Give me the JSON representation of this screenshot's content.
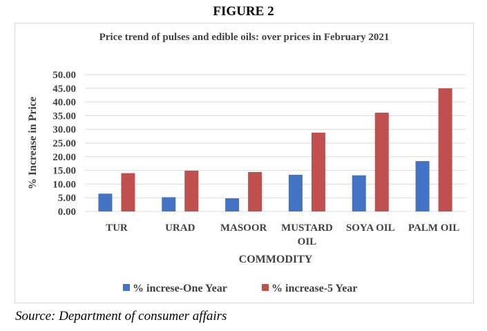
{
  "figure_label": "FIGURE 2",
  "source": "Source: Department of consumer affairs",
  "colors": {
    "series1": "#4472c4",
    "series2": "#c0504d",
    "grid": "#d9d9d9",
    "text": "#404040"
  },
  "chart_data": {
    "type": "bar",
    "title": "Price trend of pulses and edible oils: over prices in February 2021",
    "xlabel": "COMMODITY",
    "ylabel": "% Increase in Price",
    "ylim": [
      0,
      50
    ],
    "yticks": [
      "0.00",
      "5.00",
      "10.00",
      "15.00",
      "20.00",
      "25.00",
      "30.00",
      "35.00",
      "40.00",
      "45.00",
      "50.00"
    ],
    "categories": [
      [
        "TUR"
      ],
      [
        "URAD"
      ],
      [
        "MASOOR"
      ],
      [
        "MUSTARD",
        "OIL"
      ],
      [
        "SOYA OIL"
      ],
      [
        "PALM OIL"
      ]
    ],
    "grid": true,
    "legend_position": "bottom",
    "series": [
      {
        "name": "% increse-One Year",
        "values": [
          6.5,
          5.2,
          4.8,
          13.4,
          13.2,
          18.4
        ]
      },
      {
        "name": "% increase-5 Year",
        "values": [
          14.0,
          14.9,
          14.4,
          28.8,
          36.1,
          45.0
        ]
      }
    ]
  }
}
